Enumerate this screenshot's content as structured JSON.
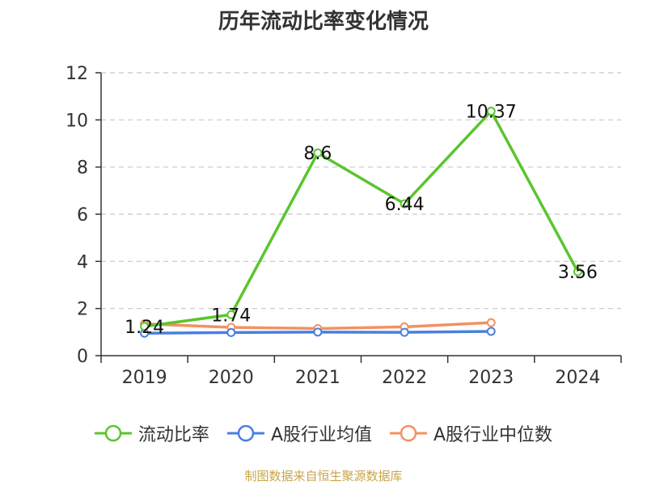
{
  "chart_data": {
    "type": "line",
    "title": "历年流动比率变化情况",
    "categories": [
      "2019",
      "2020",
      "2021",
      "2022",
      "2023",
      "2024"
    ],
    "ylim": [
      0,
      12
    ],
    "yticks": [
      0,
      2,
      4,
      6,
      8,
      10,
      12
    ],
    "grid": true,
    "legend_position": "bottom",
    "series": [
      {
        "name": "流动比率",
        "color": "#5ac52e",
        "values": [
          1.24,
          1.74,
          8.6,
          6.44,
          10.37,
          3.56
        ],
        "labels": [
          "1.24",
          "1.74",
          "8.6",
          "6.44",
          "10.37",
          "3.56"
        ],
        "show_labels": true
      },
      {
        "name": "A股行业均值",
        "color": "#4a7fe0",
        "values": [
          0.95,
          0.98,
          1.0,
          0.99,
          1.03,
          null
        ],
        "show_labels": false
      },
      {
        "name": "A股行业中位数",
        "color": "#f29162",
        "values": [
          1.35,
          1.2,
          1.15,
          1.22,
          1.4,
          null
        ],
        "show_labels": false
      }
    ]
  },
  "source_note": "制图数据来自恒生聚源数据库"
}
